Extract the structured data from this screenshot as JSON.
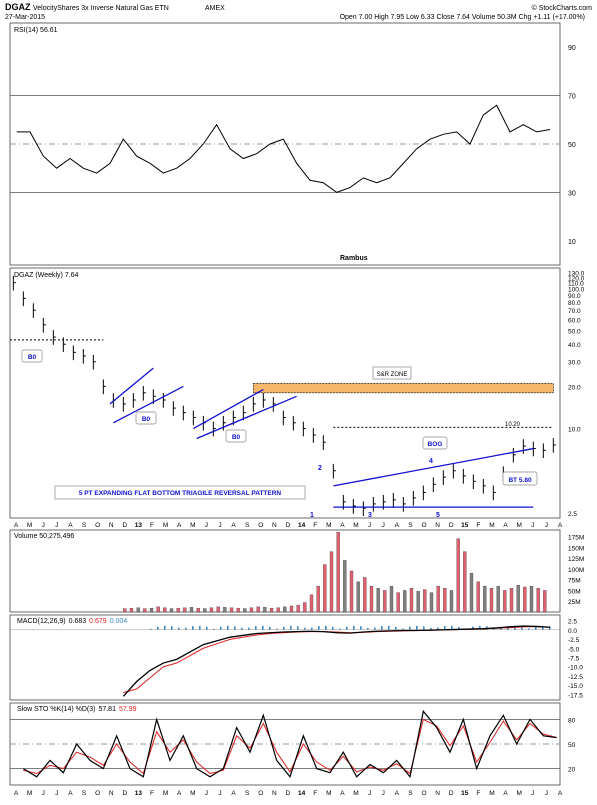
{
  "header": {
    "symbol": "DGAZ",
    "name": "VelocityShares 3x Inverse Natural Gas ETN",
    "exchange": "AMEX",
    "date": "27-Mar-2015",
    "brand": "© StockCharts.com",
    "ohlc": "Open 7.00  High 7.95  Low 6.33  Close 7.64  Volume 50.3M  Chg +1.11 (+17.00%)"
  },
  "author": "Rambus",
  "x_labels": [
    "A",
    "M",
    "J",
    "J",
    "A",
    "S",
    "O",
    "N",
    "D",
    "13",
    "F",
    "M",
    "A",
    "M",
    "J",
    "J",
    "A",
    "S",
    "O",
    "N",
    "D",
    "14",
    "F",
    "M",
    "A",
    "M",
    "J",
    "J",
    "A",
    "S",
    "O",
    "N",
    "D",
    "15",
    "F",
    "M",
    "A",
    "M",
    "J",
    "J",
    "A"
  ],
  "colors": {
    "price_line": "#000000",
    "trendline": "#1010d0",
    "fill_zone": "#f4b66a",
    "vol_up": "#e06070",
    "vol_down": "#808080",
    "macd_hist": "#3b88c4",
    "signal": "#e02020"
  },
  "chart_data": [
    {
      "type": "line",
      "panel": "rsi",
      "legend": "RSI(14) 56.61",
      "y_ticks": [
        "90",
        "70",
        "50",
        "30",
        "10"
      ],
      "ylim": [
        0,
        100
      ],
      "x": [
        2,
        6,
        10,
        14,
        18,
        22,
        26,
        30,
        34,
        38,
        42,
        46,
        50,
        54,
        58,
        62,
        66,
        70,
        74,
        78,
        82,
        86,
        90,
        94,
        98,
        102,
        106,
        110,
        114,
        118,
        122,
        126,
        130,
        134,
        138,
        142,
        146,
        150,
        154,
        158,
        162
      ],
      "values": [
        55,
        55,
        45,
        40,
        44,
        40,
        38,
        42,
        52,
        45,
        42,
        38,
        40,
        44,
        50,
        58,
        48,
        44,
        46,
        50,
        52,
        42,
        35,
        34,
        30,
        32,
        36,
        34,
        36,
        42,
        48,
        52,
        54,
        55,
        50,
        62,
        66,
        55,
        58,
        55,
        56
      ]
    },
    {
      "type": "ohlc",
      "panel": "price",
      "legend": "DGAZ (Weekly) 7.64",
      "log_scale": true,
      "y_ticks": [
        "130.0",
        "120.0",
        "110.0",
        "100.0",
        "90.0",
        "80.0",
        "70.0",
        "60.0",
        "50.0",
        "40.0",
        "30.0",
        "20.0",
        "10.0",
        "2.5"
      ],
      "x": [
        1,
        4,
        7,
        10,
        13,
        16,
        19,
        22,
        25,
        28,
        31,
        34,
        37,
        40,
        43,
        46,
        49,
        52,
        55,
        58,
        61,
        64,
        67,
        70,
        73,
        76,
        79,
        82,
        85,
        88,
        91,
        94,
        97,
        100,
        103,
        106,
        109,
        112,
        115,
        118,
        121,
        124,
        127,
        130,
        133,
        136,
        139,
        142,
        145,
        148,
        151,
        154,
        157,
        160,
        163
      ],
      "close": [
        110,
        85,
        70,
        55,
        45,
        40,
        35,
        33,
        30,
        20,
        16,
        15,
        16,
        18,
        17,
        16,
        14,
        13,
        12,
        11,
        10,
        11,
        12,
        13,
        15,
        16,
        15,
        12,
        11,
        10,
        9,
        8,
        5,
        3,
        2.8,
        2.7,
        2.9,
        3.0,
        3.1,
        2.9,
        3.2,
        3.5,
        4.0,
        4.5,
        5.0,
        4.6,
        4.2,
        3.9,
        3.5,
        4.8,
        6.5,
        7.5,
        7.2,
        7.0,
        7.64
      ],
      "annotations": [
        "B0",
        "B0",
        "B0",
        "S&R ZONE",
        "10.20",
        "BOG",
        "BT 5.80",
        "5 PT EXPANDING FLAT BOTTOM TRIAGILE REVERSAL PATTERN",
        "1",
        "2",
        "3",
        "4",
        "5"
      ]
    },
    {
      "type": "bar",
      "panel": "volume",
      "legend": "Volume 50,275,496",
      "y_ticks": [
        "175M",
        "150M",
        "125M",
        "100M",
        "75M",
        "50M",
        "25M"
      ],
      "ylim": [
        0,
        190
      ],
      "start_x": 34,
      "values": [
        8,
        9,
        10,
        8,
        9,
        12,
        10,
        8,
        9,
        10,
        11,
        9,
        8,
        10,
        12,
        11,
        10,
        9,
        8,
        10,
        12,
        11,
        9,
        10,
        12,
        14,
        16,
        22,
        40,
        60,
        110,
        140,
        185,
        120,
        95,
        70,
        80,
        60,
        55,
        50,
        60,
        45,
        50,
        55,
        48,
        52,
        45,
        60,
        55,
        50,
        170,
        140,
        90,
        70,
        60,
        55,
        60,
        50,
        55,
        62,
        58,
        60,
        55,
        50
      ],
      "up": [
        1,
        1,
        0,
        1,
        0,
        1,
        1,
        0,
        1,
        1,
        0,
        1,
        0,
        1,
        1,
        0,
        1,
        1,
        0,
        1,
        1,
        0,
        1,
        1,
        0,
        1,
        1,
        1,
        1,
        1,
        1,
        1,
        1,
        0,
        1,
        0,
        1,
        1,
        0,
        1,
        0,
        1,
        0,
        1,
        0,
        1,
        0,
        1,
        1,
        0,
        1,
        1,
        0,
        1,
        0,
        1,
        0,
        1,
        1,
        0,
        1,
        0,
        1,
        1
      ]
    },
    {
      "type": "line",
      "panel": "macd",
      "legend_prefix": "MACD(12,26,9)",
      "legend_macd": "0.683",
      "legend_signal": "0.679",
      "legend_hist": "0.004",
      "y_ticks": [
        "2.5",
        "0.0",
        "-2.5",
        "-5.0",
        "-7.5",
        "-10.0",
        "-12.5",
        "-15.0",
        "-17.5"
      ],
      "ylim": [
        -19,
        4
      ],
      "x": [
        34,
        38,
        42,
        46,
        50,
        54,
        58,
        62,
        66,
        70,
        74,
        78,
        82,
        86,
        90,
        94,
        98,
        102,
        106,
        110,
        114,
        118,
        122,
        126,
        130,
        134,
        138,
        142,
        146,
        150,
        154,
        158,
        162
      ],
      "macd": [
        -18,
        -14,
        -11,
        -9,
        -8,
        -6,
        -4,
        -3,
        -2,
        -1.5,
        -1,
        -0.8,
        -0.6,
        -0.5,
        -0.4,
        -0.5,
        -0.8,
        -0.9,
        -0.6,
        -0.4,
        -0.3,
        -0.2,
        -0.2,
        -0.1,
        0,
        0.1,
        0.2,
        0.3,
        0.5,
        0.8,
        1.0,
        0.9,
        0.683
      ],
      "signal": [
        -17,
        -16,
        -13,
        -10,
        -9,
        -7,
        -5,
        -3.8,
        -2.6,
        -2,
        -1.4,
        -1,
        -0.8,
        -0.6,
        -0.5,
        -0.5,
        -0.6,
        -0.8,
        -0.7,
        -0.5,
        -0.4,
        -0.3,
        -0.2,
        -0.15,
        -0.05,
        0.05,
        0.15,
        0.25,
        0.4,
        0.6,
        0.8,
        0.85,
        0.679
      ]
    },
    {
      "type": "line",
      "panel": "sto",
      "legend_prefix": "Slow STO %K(14) %D(3)",
      "legend_k": "57.81",
      "legend_d": "57.99",
      "y_ticks": [
        "80",
        "50",
        "20"
      ],
      "ylim": [
        0,
        100
      ],
      "x": [
        4,
        8,
        12,
        16,
        20,
        24,
        28,
        32,
        36,
        40,
        44,
        48,
        52,
        56,
        60,
        64,
        68,
        72,
        76,
        80,
        84,
        88,
        92,
        96,
        100,
        104,
        108,
        112,
        116,
        120,
        124,
        128,
        132,
        136,
        140,
        144,
        148,
        152,
        156,
        160,
        164
      ],
      "k": [
        20,
        10,
        30,
        15,
        50,
        30,
        20,
        60,
        20,
        10,
        80,
        30,
        60,
        20,
        10,
        20,
        70,
        40,
        85,
        30,
        10,
        60,
        20,
        15,
        40,
        10,
        25,
        15,
        30,
        10,
        90,
        70,
        40,
        80,
        20,
        60,
        85,
        50,
        80,
        60,
        57.81
      ],
      "d": [
        18,
        14,
        24,
        20,
        40,
        34,
        24,
        50,
        28,
        14,
        65,
        40,
        55,
        28,
        14,
        18,
        60,
        45,
        75,
        40,
        16,
        50,
        28,
        18,
        35,
        16,
        22,
        18,
        26,
        14,
        80,
        72,
        48,
        72,
        28,
        52,
        78,
        55,
        75,
        62,
        57.99
      ]
    }
  ]
}
